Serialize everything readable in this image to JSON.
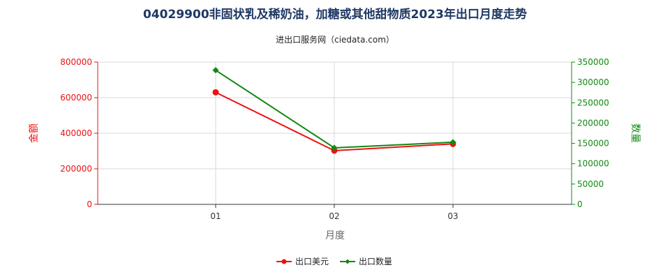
{
  "chart_data": {
    "type": "line",
    "title": "04029900非固状乳及稀奶油，加糖或其他甜物质2023年出口月度走势",
    "subtitle": "进出口服务网（ciedata.com）",
    "xlabel": "月度",
    "ylabel_left": "金额",
    "ylabel_right": "数量",
    "categories": [
      "01",
      "02",
      "03"
    ],
    "ylim_left": [
      0,
      800000
    ],
    "ylim_right": [
      0,
      350000
    ],
    "yticks_left": [
      "0",
      "200000",
      "400000",
      "600000",
      "800000"
    ],
    "yticks_right": [
      "0",
      "50000",
      "100000",
      "150000",
      "200000",
      "250000",
      "300000",
      "350000"
    ],
    "grid": true,
    "legend_position": "bottom",
    "series": [
      {
        "name": "出口美元",
        "axis": "left",
        "color": "#ee1111",
        "values": [
          630000,
          302000,
          340000
        ]
      },
      {
        "name": "出口数量",
        "axis": "right",
        "color": "#118811",
        "values": [
          330000,
          139000,
          153000
        ]
      }
    ]
  }
}
